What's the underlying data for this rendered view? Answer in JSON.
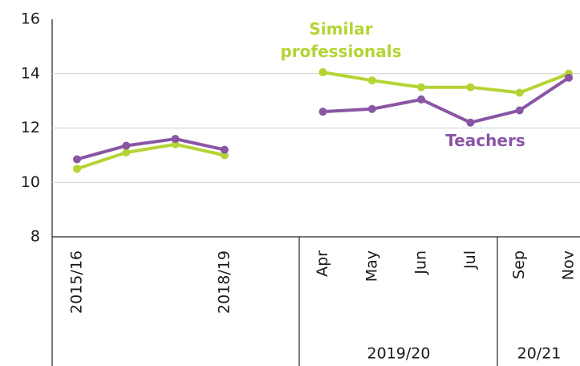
{
  "chart_data": {
    "type": "line",
    "categories": [
      "2015/16",
      null,
      null,
      "2018/19",
      null,
      "Apr",
      "May",
      "Jun",
      "Jul",
      "Sep",
      "Nov"
    ],
    "category_groups": [
      "2019/20",
      "20/21"
    ],
    "series": [
      {
        "name": "Teachers",
        "color": "#8b55a5",
        "values": [
          10.85,
          11.35,
          11.6,
          11.2,
          null,
          12.6,
          12.7,
          13.05,
          12.2,
          12.65,
          13.85
        ]
      },
      {
        "name": "Similar professionals",
        "color": "#b4d435",
        "values": [
          10.5,
          11.1,
          11.4,
          11.0,
          null,
          14.05,
          13.75,
          13.5,
          13.5,
          13.3,
          14.0
        ]
      }
    ],
    "annotations": [
      [
        "Similar",
        "professionals"
      ],
      [
        "Teachers"
      ]
    ],
    "ylim": [
      8,
      16
    ],
    "yticks": [
      8,
      10,
      12,
      14,
      16
    ],
    "grid": true
  }
}
